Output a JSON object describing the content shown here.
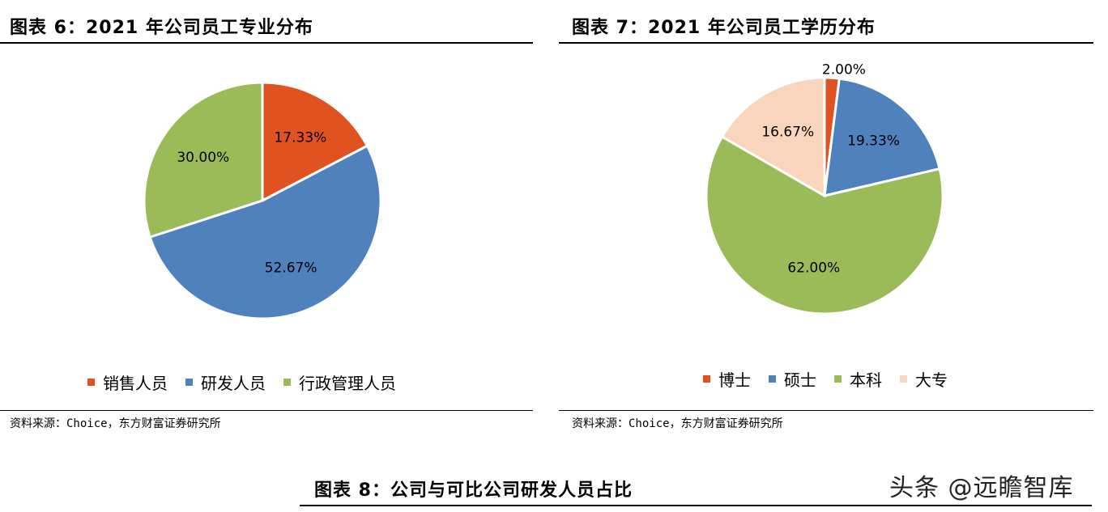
{
  "figure6": {
    "title": "图表 6：2021 年公司员工专业分布",
    "source": "资料来源：Choice，东方财富证券研究所"
  },
  "figure7": {
    "title": "图表 7：2021 年公司员工学历分布",
    "source": "资料来源：Choice，东方财富证券研究所"
  },
  "figure8": {
    "title": "图表 8：公司与可比公司研发人员占比"
  },
  "watermark": "头条 @远瞻智库",
  "chart_data": [
    {
      "type": "pie",
      "title": "",
      "categories": [
        "销售人员",
        "研发人员",
        "行政管理人员"
      ],
      "values": [
        17.33,
        52.67,
        30.0
      ],
      "labels": [
        "17.33%",
        "52.67%",
        "30.00%"
      ],
      "colors": [
        "#E0521F",
        "#4F81BD",
        "#9BBB59"
      ],
      "legend": "bottom"
    },
    {
      "type": "pie",
      "title": "",
      "categories": [
        "博士",
        "硕士",
        "本科",
        "大专"
      ],
      "values": [
        2.0,
        19.33,
        62.0,
        16.67
      ],
      "labels": [
        "2.00%",
        "19.33%",
        "62.00%",
        "16.67%"
      ],
      "colors": [
        "#E0521F",
        "#4F81BD",
        "#9BBB59",
        "#F9D5BD"
      ],
      "legend": "bottom"
    }
  ]
}
